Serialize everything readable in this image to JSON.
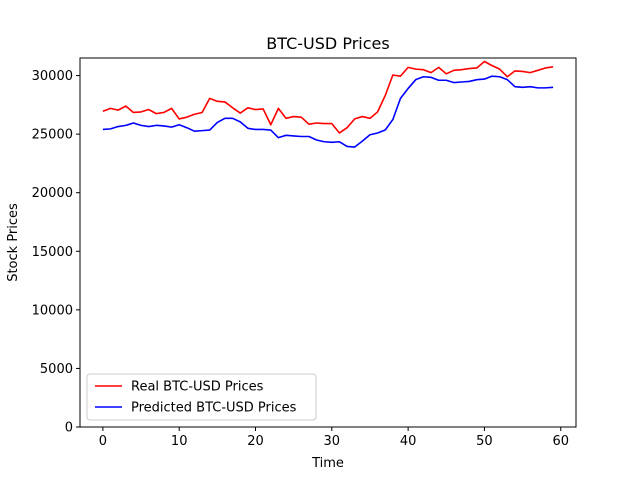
{
  "chart_data": {
    "type": "line",
    "title": "BTC-USD Prices",
    "xlabel": "Time",
    "ylabel": "Stock Prices",
    "xlim": [
      -3,
      62
    ],
    "ylim": [
      0,
      31500
    ],
    "xticks": [
      0,
      10,
      20,
      30,
      40,
      50,
      60
    ],
    "yticks": [
      0,
      5000,
      10000,
      15000,
      20000,
      25000,
      30000
    ],
    "grid": false,
    "legend_position": "lower-left",
    "x": [
      0,
      1,
      2,
      3,
      4,
      5,
      6,
      7,
      8,
      9,
      10,
      11,
      12,
      13,
      14,
      15,
      16,
      17,
      18,
      19,
      20,
      21,
      22,
      23,
      24,
      25,
      26,
      27,
      28,
      29,
      30,
      31,
      32,
      33,
      34,
      35,
      36,
      37,
      38,
      39,
      40,
      41,
      42,
      43,
      44,
      45,
      46,
      47,
      48,
      49,
      50,
      51,
      52,
      53,
      54,
      55,
      56,
      57,
      58,
      59
    ],
    "series": [
      {
        "name": "Real BTC-USD Prices",
        "color": "#ff0000",
        "values": [
          26950,
          27200,
          27050,
          27400,
          26850,
          26900,
          27100,
          26750,
          26850,
          27200,
          26300,
          26450,
          26700,
          26850,
          28050,
          27800,
          27750,
          27250,
          26800,
          27250,
          27100,
          27150,
          25800,
          27200,
          26350,
          26500,
          26450,
          25850,
          25950,
          25900,
          25900,
          25100,
          25550,
          26300,
          26500,
          26350,
          26900,
          28300,
          30050,
          29950,
          30700,
          30550,
          30500,
          30250,
          30700,
          30150,
          30450,
          30500,
          30600,
          30650,
          31200,
          30850,
          30550,
          29900,
          30400,
          30350,
          30250,
          30450,
          30650,
          30750
        ]
      },
      {
        "name": "Predicted BTC-USD Prices",
        "color": "#0000ff",
        "values": [
          25400,
          25450,
          25650,
          25750,
          25950,
          25750,
          25650,
          25750,
          25700,
          25600,
          25800,
          25550,
          25250,
          25300,
          25350,
          26000,
          26350,
          26350,
          26050,
          25500,
          25400,
          25400,
          25350,
          24700,
          24900,
          24850,
          24800,
          24800,
          24500,
          24350,
          24300,
          24350,
          23950,
          23900,
          24400,
          24950,
          25100,
          25350,
          26250,
          28050,
          28900,
          29650,
          29900,
          29850,
          29600,
          29600,
          29400,
          29450,
          29500,
          29650,
          29700,
          29950,
          29900,
          29650,
          29050,
          29000,
          29050,
          28950,
          28950,
          29000
        ]
      }
    ]
  }
}
